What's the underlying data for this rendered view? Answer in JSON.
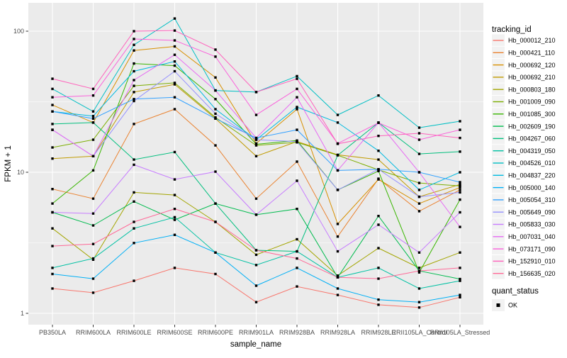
{
  "chart_data": {
    "type": "line",
    "title": "",
    "xlabel": "sample_name",
    "ylabel": "FPKM + 1",
    "y_scale": "log10",
    "y_ticks": [
      1,
      10,
      100
    ],
    "ylim": [
      0.83,
      160
    ],
    "grid": true,
    "panel_bg": "#EBEBEB",
    "grid_color": "#FFFFFF",
    "point_shape": "filled-black-square",
    "categories": [
      "PB350LA",
      "RRIM600LA",
      "RRIM600LE",
      "RRIM600SE",
      "RRIM600PE",
      "RRIM901LA",
      "RRIM928BA",
      "RRIM928LA",
      "RRIM928LE",
      "RRII105LA_Control",
      "RRII105LA_Stressed"
    ],
    "series": [
      {
        "name": "Hb_000012_210",
        "color": "#F8766D",
        "values": [
          1.5,
          1.4,
          1.7,
          2.1,
          1.9,
          1.2,
          1.55,
          1.35,
          1.15,
          1.1,
          1.3
        ]
      },
      {
        "name": "Hb_000421_110",
        "color": "#EA8331",
        "values": [
          7.6,
          6.5,
          22,
          28,
          15.5,
          6.5,
          11.9,
          3.5,
          9,
          5.3,
          7.5
        ]
      },
      {
        "name": "Hb_000692_120",
        "color": "#D89000",
        "values": [
          30,
          22.5,
          73,
          78,
          47,
          16,
          28,
          4.3,
          8.9,
          6,
          7.8
        ]
      },
      {
        "name": "Hb_000692_210",
        "color": "#C09B00",
        "values": [
          12.5,
          13,
          37,
          42,
          24,
          13,
          16.5,
          13.3,
          12.3,
          6.7,
          8.2
        ]
      },
      {
        "name": "Hb_000803_180",
        "color": "#A3A500",
        "values": [
          4,
          2.4,
          7.2,
          6.9,
          4.45,
          2.6,
          3.35,
          1.85,
          2.9,
          2.1,
          2.7
        ]
      },
      {
        "name": "Hb_001009_090",
        "color": "#7CAE00",
        "values": [
          15,
          17,
          41,
          43,
          24.5,
          15.5,
          16.3,
          13.2,
          10.4,
          8.4,
          8
        ]
      },
      {
        "name": "Hb_001085_300",
        "color": "#39B600",
        "values": [
          6,
          10.3,
          59,
          57,
          33,
          15.8,
          16.8,
          7.5,
          10.2,
          1.95,
          6.4
        ]
      },
      {
        "name": "Hb_002609_190",
        "color": "#00BB4E",
        "values": [
          5.2,
          4.2,
          6.2,
          4.6,
          6,
          5,
          5.5,
          1.8,
          4.9,
          2,
          1.75
        ]
      },
      {
        "name": "Hb_004267_060",
        "color": "#00BF7D",
        "values": [
          22,
          22.5,
          12.3,
          13.9,
          6,
          2.8,
          2.75,
          13.2,
          22.5,
          13.5,
          14
        ]
      },
      {
        "name": "Hb_004319_050",
        "color": "#00C1A3",
        "values": [
          2.1,
          2.45,
          4,
          4.8,
          2.7,
          2.2,
          2.75,
          1.8,
          2.1,
          1.5,
          1.7
        ]
      },
      {
        "name": "Hb_004526_010",
        "color": "#00BFC4",
        "values": [
          39,
          27,
          80,
          123,
          38,
          37,
          48,
          25.5,
          35,
          20.7,
          23
        ]
      },
      {
        "name": "Hb_004837_220",
        "color": "#00BAE0",
        "values": [
          27,
          25,
          52,
          61,
          28,
          17,
          29,
          22.5,
          14.2,
          7.5,
          10
        ]
      },
      {
        "name": "Hb_005000_140",
        "color": "#00B0F6",
        "values": [
          1.9,
          1.76,
          3.15,
          3.6,
          2.7,
          1.57,
          2.1,
          1.5,
          1.25,
          1.2,
          1.35
        ]
      },
      {
        "name": "Hb_005054_310",
        "color": "#35A2FF",
        "values": [
          27,
          24,
          33,
          34,
          24,
          17.5,
          20,
          10.3,
          10.5,
          10,
          8.5
        ]
      },
      {
        "name": "Hb_005649_090",
        "color": "#9590FF",
        "values": [
          20,
          13,
          32,
          52,
          26,
          17,
          16.5,
          7.5,
          10.5,
          6.7,
          7.2
        ]
      },
      {
        "name": "Hb_005833_030",
        "color": "#C77CFF",
        "values": [
          5.2,
          5.1,
          11.3,
          8.9,
          10.1,
          5,
          8.7,
          2.75,
          4.25,
          2.7,
          5.2
        ]
      },
      {
        "name": "Hb_007031_040",
        "color": "#E76BF3",
        "values": [
          20,
          13,
          45,
          68,
          38,
          17.5,
          34,
          10.3,
          22.5,
          10,
          4.1
        ]
      },
      {
        "name": "Hb_073171_090",
        "color": "#FA62DB",
        "values": [
          34,
          35,
          88,
          86,
          66,
          25.5,
          39,
          16,
          22.4,
          17,
          20
        ]
      },
      {
        "name": "Hb_152910_010",
        "color": "#FF62BC",
        "values": [
          46,
          39,
          100,
          101,
          74,
          37,
          46,
          15.9,
          18.1,
          18.9,
          17.5
        ]
      },
      {
        "name": "Hb_156635_020",
        "color": "#FF6A98",
        "values": [
          3,
          3.1,
          4.45,
          5.5,
          4.45,
          2.8,
          2.45,
          1.8,
          1.76,
          2,
          2.1
        ]
      }
    ],
    "legend_position": "right"
  },
  "legend": {
    "title": "tracking_id"
  },
  "legend2": {
    "title": "quant_status",
    "items": [
      {
        "label": "OK"
      }
    ]
  }
}
